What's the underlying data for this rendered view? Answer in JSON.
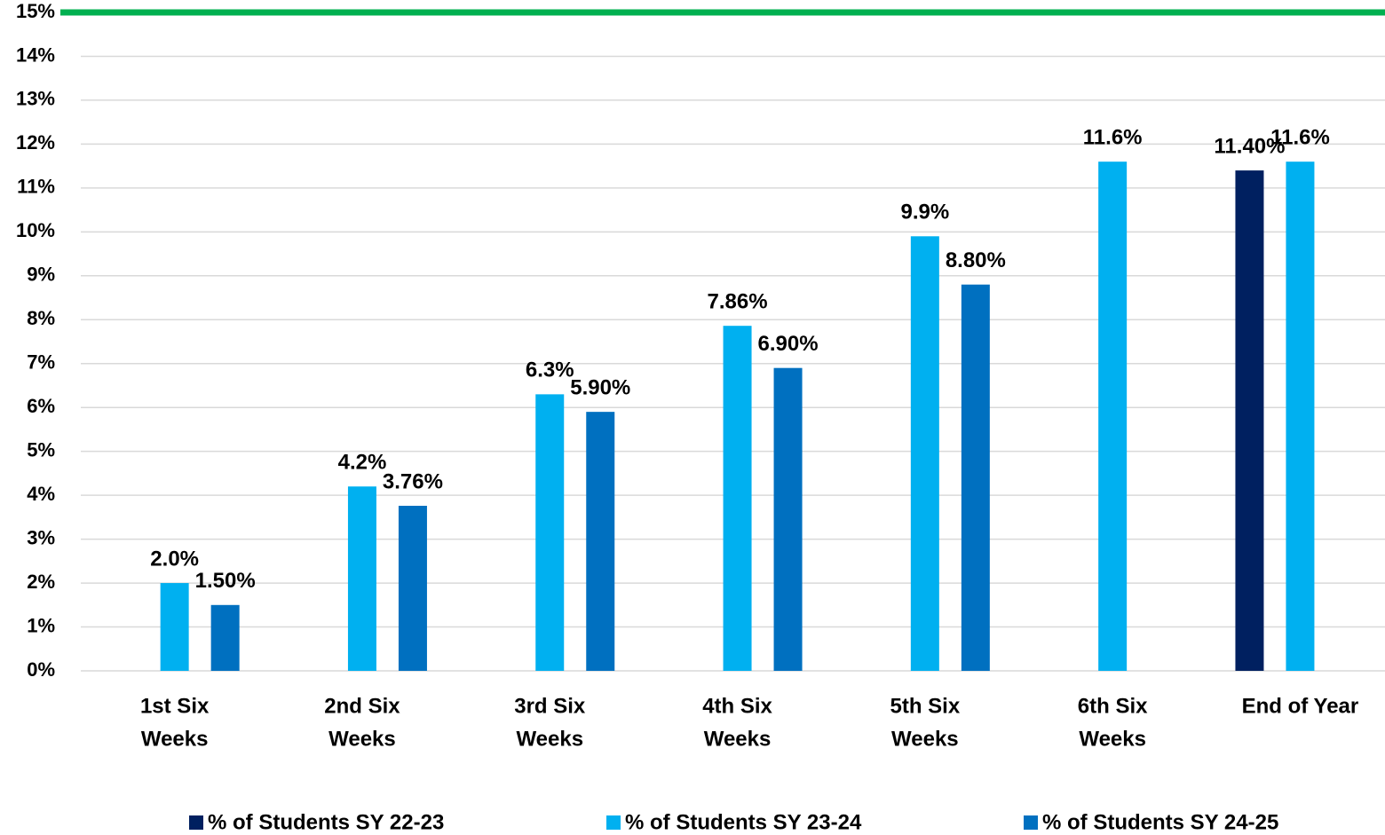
{
  "chart_data": {
    "type": "bar",
    "categories": [
      [
        "1st Six",
        "Weeks"
      ],
      [
        "2nd Six",
        "Weeks"
      ],
      [
        "3rd Six",
        "Weeks"
      ],
      [
        "4th Six",
        "Weeks"
      ],
      [
        "5th Six",
        "Weeks"
      ],
      [
        "6th Six",
        "Weeks"
      ],
      [
        "End of Year"
      ]
    ],
    "series": [
      {
        "name": "% of Students SY 22-23",
        "color": "#002060",
        "values": [
          null,
          null,
          null,
          null,
          null,
          null,
          11.4
        ],
        "value_labels": [
          null,
          null,
          null,
          null,
          null,
          null,
          "11.40%"
        ]
      },
      {
        "name": "% of Students SY 23-24",
        "color": "#00b0f0",
        "values": [
          2.0,
          4.2,
          6.3,
          7.86,
          9.9,
          11.6,
          11.6
        ],
        "value_labels": [
          "2.0%",
          "4.2%",
          "6.3%",
          "7.86%",
          "9.9%",
          "11.6%",
          "11.6%"
        ]
      },
      {
        "name": "% of Students SY 24-25",
        "color": "#0070c0",
        "values": [
          1.5,
          3.76,
          5.9,
          6.9,
          8.8,
          null,
          null
        ],
        "value_labels": [
          "1.50%",
          "3.76%",
          "5.90%",
          "6.90%",
          "8.80%",
          null,
          null
        ]
      }
    ],
    "ylim": [
      0,
      15
    ],
    "yticks": [
      {
        "value": 0,
        "label": "0%"
      },
      {
        "value": 1,
        "label": "1%"
      },
      {
        "value": 2,
        "label": "2%"
      },
      {
        "value": 3,
        "label": "3%"
      },
      {
        "value": 4,
        "label": "4%"
      },
      {
        "value": 5,
        "label": "5%"
      },
      {
        "value": 6,
        "label": "6%"
      },
      {
        "value": 7,
        "label": "7%"
      },
      {
        "value": 8,
        "label": "8%"
      },
      {
        "value": 9,
        "label": "9%"
      },
      {
        "value": 10,
        "label": "10%"
      },
      {
        "value": 11,
        "label": "11%"
      },
      {
        "value": 12,
        "label": "12%"
      },
      {
        "value": 13,
        "label": "13%"
      },
      {
        "value": 14,
        "label": "14%"
      },
      {
        "value": 15,
        "label": "15%"
      }
    ],
    "grid": true,
    "legend": "bottom",
    "reference_line": {
      "value": 15,
      "color": "#00b050"
    }
  }
}
